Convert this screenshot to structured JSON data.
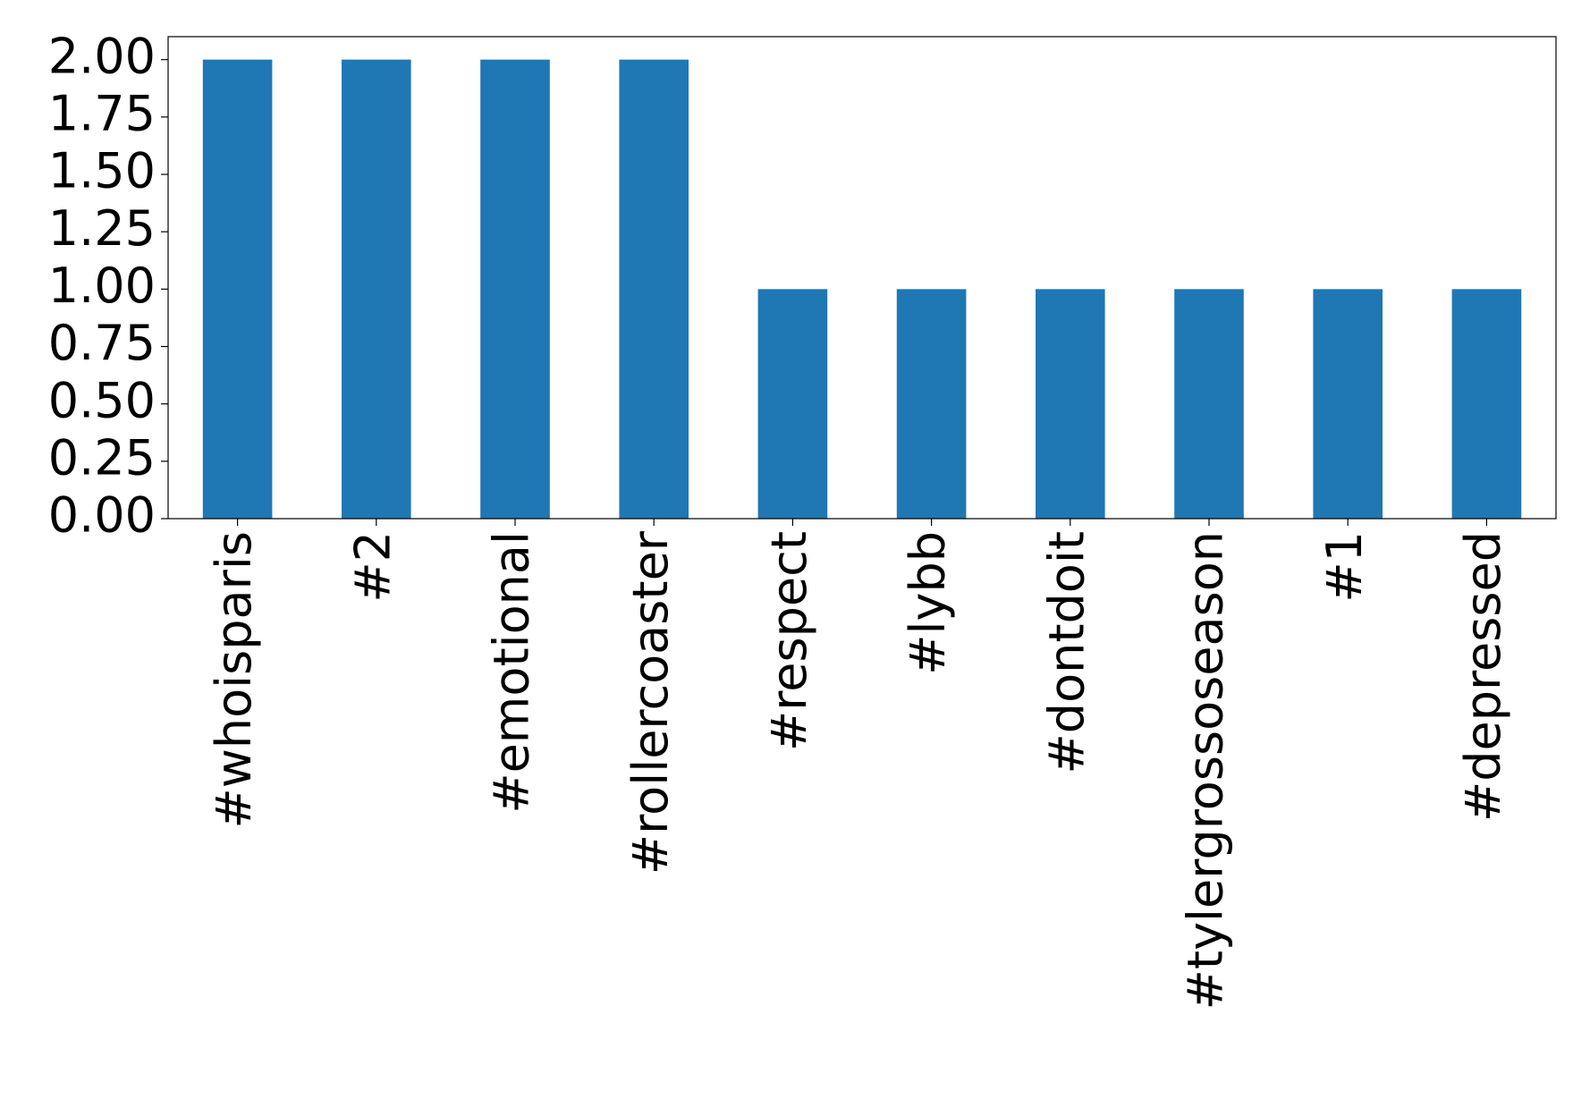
{
  "chart_data": {
    "type": "bar",
    "categories": [
      "#whoisparis",
      "#2",
      "#emotional",
      "#rollercoaster",
      "#respect",
      "#lybb",
      "#dontdoit",
      "#tylergrossoseason",
      "#1",
      "#depressed"
    ],
    "values": [
      2,
      2,
      2,
      2,
      1,
      1,
      1,
      1,
      1,
      1
    ],
    "color": "#1f77b4",
    "ylim": [
      0,
      2.1
    ],
    "yticks": [
      {
        "value": 0,
        "label": "0.00"
      },
      {
        "value": 0.25,
        "label": "0.25"
      },
      {
        "value": 0.5,
        "label": "0.50"
      },
      {
        "value": 0.75,
        "label": "0.75"
      },
      {
        "value": 1,
        "label": "1.00"
      },
      {
        "value": 1.25,
        "label": "1.25"
      },
      {
        "value": 1.5,
        "label": "1.50"
      },
      {
        "value": 1.75,
        "label": "1.75"
      },
      {
        "value": 2,
        "label": "2.00"
      }
    ],
    "grid": false
  }
}
